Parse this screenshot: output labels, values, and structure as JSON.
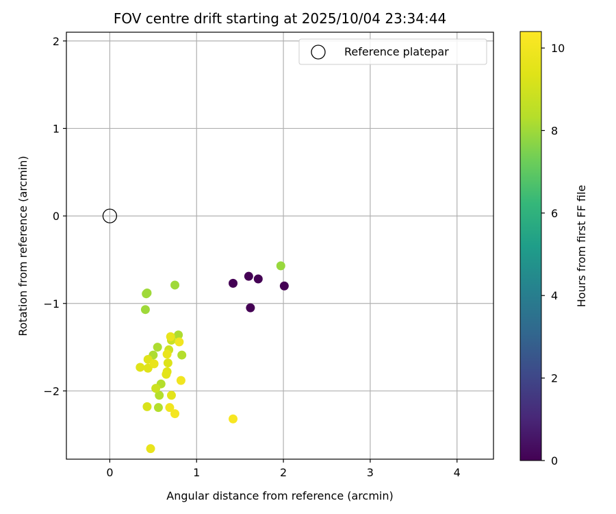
{
  "chart_data": {
    "type": "scatter",
    "title": "FOV centre drift starting at 2025/10/04 23:34:44",
    "xlabel": "Angular distance from reference (arcmin)",
    "ylabel": "Rotation from reference (arcmin)",
    "xlim": [
      -0.5,
      4.42
    ],
    "ylim": [
      -2.78,
      2.1
    ],
    "xticks": [
      0,
      1,
      2,
      3,
      4
    ],
    "yticks": [
      2,
      1,
      0,
      -1,
      -2
    ],
    "grid": true,
    "legend": {
      "position": "top-right",
      "entries": [
        "Reference platepar"
      ]
    },
    "reference_point": {
      "x": 0,
      "y": 0,
      "label": "Reference platepar"
    },
    "colorbar": {
      "label": "Hours from first FF file",
      "range": [
        0,
        10.4
      ],
      "ticks": [
        0,
        2,
        4,
        6,
        8,
        10
      ],
      "colormap": "viridis"
    },
    "points": [
      {
        "x": 1.42,
        "y": -0.77,
        "h": 0.0
      },
      {
        "x": 1.6,
        "y": -0.69,
        "h": 0.0
      },
      {
        "x": 1.71,
        "y": -0.72,
        "h": 0.0
      },
      {
        "x": 2.01,
        "y": -0.8,
        "h": 0.0
      },
      {
        "x": 1.62,
        "y": -1.05,
        "h": 0.0
      },
      {
        "x": 1.97,
        "y": -0.57,
        "h": 7.9
      },
      {
        "x": 0.75,
        "y": -0.79,
        "h": 8.0
      },
      {
        "x": 0.43,
        "y": -0.88,
        "h": 8.0
      },
      {
        "x": 0.42,
        "y": -0.89,
        "h": 8.0
      },
      {
        "x": 0.41,
        "y": -1.07,
        "h": 8.0
      },
      {
        "x": 0.79,
        "y": -1.36,
        "h": 8.2
      },
      {
        "x": 0.55,
        "y": -1.5,
        "h": 8.2
      },
      {
        "x": 0.5,
        "y": -1.59,
        "h": 8.2
      },
      {
        "x": 0.83,
        "y": -1.59,
        "h": 8.3
      },
      {
        "x": 0.59,
        "y": -1.92,
        "h": 8.3
      },
      {
        "x": 0.57,
        "y": -2.05,
        "h": 8.3
      },
      {
        "x": 0.56,
        "y": -2.19,
        "h": 8.3
      },
      {
        "x": 0.71,
        "y": -1.42,
        "h": 8.8
      },
      {
        "x": 0.68,
        "y": -1.53,
        "h": 8.9
      },
      {
        "x": 0.53,
        "y": -1.97,
        "h": 8.9
      },
      {
        "x": 0.43,
        "y": -2.18,
        "h": 9.2
      },
      {
        "x": 0.67,
        "y": -1.68,
        "h": 9.3
      },
      {
        "x": 0.44,
        "y": -1.64,
        "h": 9.4
      },
      {
        "x": 0.35,
        "y": -1.73,
        "h": 9.4
      },
      {
        "x": 0.44,
        "y": -1.74,
        "h": 9.4
      },
      {
        "x": 0.66,
        "y": -1.78,
        "h": 9.4
      },
      {
        "x": 0.65,
        "y": -1.81,
        "h": 9.5
      },
      {
        "x": 0.71,
        "y": -2.05,
        "h": 9.5
      },
      {
        "x": 0.7,
        "y": -1.38,
        "h": 9.7
      },
      {
        "x": 0.66,
        "y": -1.58,
        "h": 9.7
      },
      {
        "x": 0.51,
        "y": -1.69,
        "h": 9.7
      },
      {
        "x": 0.47,
        "y": -2.66,
        "h": 9.7
      },
      {
        "x": 0.8,
        "y": -1.44,
        "h": 10.0
      },
      {
        "x": 0.82,
        "y": -1.88,
        "h": 10.0
      },
      {
        "x": 0.69,
        "y": -2.19,
        "h": 10.0
      },
      {
        "x": 0.75,
        "y": -2.26,
        "h": 10.1
      },
      {
        "x": 1.42,
        "y": -2.32,
        "h": 10.2
      }
    ]
  }
}
